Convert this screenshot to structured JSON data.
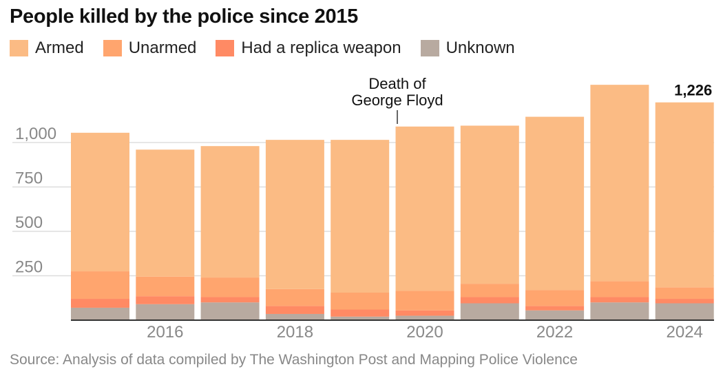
{
  "title": "People killed by the police since 2015",
  "source": "Source: Analysis of data compiled by The Washington Post and Mapping Police Violence",
  "colors": {
    "armed": "#fbbb84",
    "unarmed": "#ffa56e",
    "replica": "#ff8a64",
    "unknown": "#b8aaa0",
    "axis": "#333333",
    "tick_text": "#888888",
    "grid": "#dddddd"
  },
  "chart_data": {
    "type": "bar",
    "stacked": true,
    "categories": [
      "2015",
      "2016",
      "2017",
      "2018",
      "2019",
      "2020",
      "2021",
      "2022",
      "2023",
      "2024"
    ],
    "series": [
      {
        "name": "Unknown",
        "key": "unknown",
        "values": [
          70,
          90,
          100,
          35,
          20,
          25,
          95,
          55,
          100,
          95
        ]
      },
      {
        "name": "Had a replica weapon",
        "key": "replica",
        "values": [
          50,
          45,
          30,
          45,
          40,
          30,
          35,
          25,
          30,
          25
        ]
      },
      {
        "name": "Unarmed",
        "key": "unarmed",
        "values": [
          155,
          110,
          110,
          95,
          95,
          110,
          75,
          90,
          90,
          65
        ]
      },
      {
        "name": "Armed",
        "key": "armed",
        "values": [
          780,
          715,
          740,
          840,
          860,
          925,
          890,
          975,
          1105,
          1041
        ]
      }
    ],
    "totals": [
      1055,
      960,
      980,
      1015,
      1015,
      1090,
      1095,
      1145,
      1325,
      1226
    ],
    "y_ticks": [
      250,
      500,
      750,
      1000
    ],
    "y_tick_labels": [
      "250",
      "500",
      "750",
      "1,000"
    ],
    "x_tick_labels": [
      {
        "label": "2016",
        "category": "2016"
      },
      {
        "label": "2018",
        "category": "2018"
      },
      {
        "label": "2020",
        "category": "2020"
      },
      {
        "label": "2022",
        "category": "2022"
      },
      {
        "label": "2024",
        "category": "2024"
      }
    ],
    "ylim": [
      0,
      1226
    ],
    "grid": true,
    "legend_position": "top-left",
    "annotations": [
      {
        "category": "2020",
        "lines": [
          "Death of",
          "George Floyd"
        ]
      },
      {
        "category": "2024",
        "text": "1,226",
        "bold": true
      }
    ]
  },
  "legend": [
    {
      "label": "Armed",
      "key": "armed"
    },
    {
      "label": "Unarmed",
      "key": "unarmed"
    },
    {
      "label": "Had a replica weapon",
      "key": "replica"
    },
    {
      "label": "Unknown",
      "key": "unknown"
    }
  ]
}
